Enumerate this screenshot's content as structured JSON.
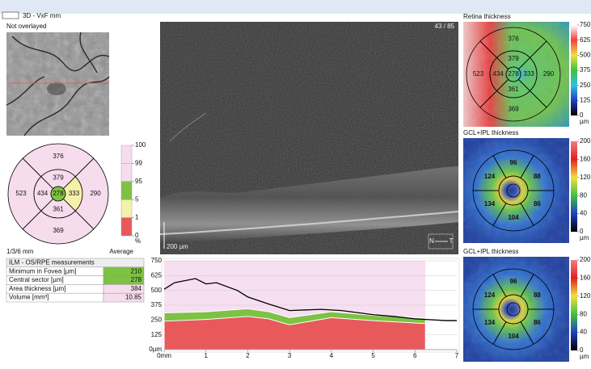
{
  "header": {
    "mode": "3D - VxF mm"
  },
  "fundus": {
    "label": "Not overlayed"
  },
  "etdrs": {
    "values": {
      "outer_top": 376,
      "inner_top": 379,
      "outer_left": 523,
      "inner_left": 434,
      "center": 278,
      "inner_right": 333,
      "outer_right": 290,
      "inner_bottom": 361,
      "outer_bottom": 369
    },
    "fills": {
      "outer_top": "#f6dcec",
      "inner_top": "#f6dcec",
      "outer_left": "#f6dcec",
      "inner_left": "#f6dcec",
      "center": "#7dc243",
      "inner_right": "#f4f1a8",
      "outer_right": "#f6dcec",
      "inner_bottom": "#f6dcec",
      "outer_bottom": "#f6dcec"
    }
  },
  "percentile": {
    "ticks": [
      100,
      99,
      95,
      5,
      1,
      0
    ],
    "unit": "%",
    "colors": [
      "#f6dcec",
      "#f6dcec",
      "#7dc243",
      "#f4f1a8",
      "#e8595c"
    ]
  },
  "grid_label": "1/3/6 mm",
  "summary_label": "Average",
  "table": {
    "title": "ILM - OS/RPE measurements",
    "rows": [
      [
        "Minimum in Fovea [µm]",
        210
      ],
      [
        "Central sector [µm]",
        278
      ],
      [
        "Area thickness [µm]",
        384
      ],
      [
        "Volume [mm³]",
        10.85
      ]
    ],
    "row_colors": [
      "#7dc243",
      "#7dc243",
      "#f6dcec",
      "#f6dcec"
    ]
  },
  "oct": {
    "slice": "43 / 85",
    "scale": "200 µm",
    "nasal": "N",
    "temporal": "T"
  },
  "chart_data": {
    "type": "area",
    "xlim": [
      0,
      7
    ],
    "xticks": [
      {
        "value": 0,
        "label": "0mm"
      },
      1,
      2,
      3,
      4,
      5,
      6,
      7
    ],
    "ylim": [
      0,
      750
    ],
    "yticks": [
      {
        "value": 0,
        "label": "0µm"
      },
      125,
      250,
      375,
      500,
      625,
      750
    ],
    "grid": true,
    "background": "#f6dff0",
    "series": [
      {
        "kind": "area",
        "color": "#7dc243",
        "x": [
          0,
          1,
          2,
          2.5,
          3,
          4,
          5,
          6.25
        ],
        "values": [
          310,
          320,
          345,
          320,
          270,
          320,
          290,
          265
        ]
      },
      {
        "kind": "area",
        "color": "#e8595c",
        "x": [
          0,
          1,
          2,
          2.5,
          3,
          4,
          5,
          6.25
        ],
        "values": [
          240,
          255,
          280,
          260,
          210,
          270,
          245,
          220
        ]
      },
      {
        "kind": "line",
        "color": "#000000",
        "x": [
          0,
          0.25,
          0.75,
          1,
          1.25,
          1.75,
          2,
          2.5,
          3,
          3.75,
          4.25,
          5,
          5.5,
          6,
          6.75,
          7
        ],
        "values": [
          510,
          565,
          600,
          555,
          565,
          500,
          445,
          385,
          330,
          340,
          330,
          295,
          280,
          260,
          245,
          245
        ]
      }
    ]
  },
  "maps": [
    {
      "title": "Retina thickness",
      "layout": "etdrs",
      "ticks": [
        750,
        625,
        500,
        375,
        250,
        125,
        0
      ],
      "unit": "µm",
      "colors": [
        "#ffffff",
        "#f04040",
        "#f0e040",
        "#40c040",
        "#30c0e0",
        "#2040c0",
        "#000000"
      ],
      "values": {
        "outer_top": 376,
        "inner_top": 379,
        "outer_left": 523,
        "inner_left": 434,
        "center": 278,
        "inner_right": 333,
        "outer_right": 290,
        "inner_bottom": 361,
        "outer_bottom": 369
      }
    },
    {
      "title": "GCL+IPL thickness",
      "layout": "sectors6",
      "ticks": [
        200,
        160,
        120,
        80,
        40,
        0
      ],
      "unit": "µm",
      "colors": [
        "#f08080",
        "#e02020",
        "#f0e040",
        "#40c040",
        "#2040c0",
        "#000000"
      ],
      "values": {
        "top": 96,
        "upper_left": 124,
        "upper_right": 88,
        "lower_left": 134,
        "lower_right": 86,
        "bottom": 104
      }
    },
    {
      "title": "GCL+IPL thickness",
      "layout": "sectors6",
      "ticks": [
        200,
        160,
        120,
        80,
        40,
        0
      ],
      "unit": "µm",
      "colors": [
        "#f08080",
        "#e02020",
        "#f0e040",
        "#40c040",
        "#2040c0",
        "#000000"
      ],
      "values": {
        "top": 96,
        "upper_left": 124,
        "upper_right": 88,
        "lower_left": 134,
        "lower_right": 86,
        "bottom": 104
      }
    }
  ]
}
